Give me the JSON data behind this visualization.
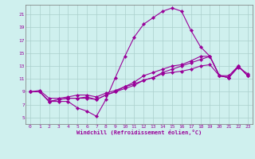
{
  "xlabel": "Windchill (Refroidissement éolien,°C)",
  "background_color": "#cff0ee",
  "plot_bg_color": "#cff0ee",
  "grid_color": "#aacfcc",
  "line_color": "#990099",
  "xlim": [
    -0.5,
    23.5
  ],
  "ylim": [
    4.0,
    22.5
  ],
  "yticks": [
    5,
    7,
    9,
    11,
    13,
    15,
    17,
    19,
    21
  ],
  "xticks": [
    0,
    1,
    2,
    3,
    4,
    5,
    6,
    7,
    8,
    9,
    10,
    11,
    12,
    13,
    14,
    15,
    16,
    17,
    18,
    19,
    20,
    21,
    22,
    23
  ],
  "series": [
    [
      9,
      9,
      7.5,
      7.5,
      7.5,
      6.5,
      6.0,
      5.2,
      7.8,
      11.2,
      14.5,
      17.5,
      19.5,
      20.5,
      21.5,
      22.0,
      21.5,
      18.5,
      16.0,
      14.5,
      11.5,
      11.5,
      13.0,
      11.5
    ],
    [
      9,
      9,
      7.5,
      7.8,
      8.0,
      8.0,
      8.0,
      7.8,
      8.5,
      9.0,
      9.8,
      10.5,
      11.5,
      12.0,
      12.5,
      13.0,
      13.2,
      13.8,
      14.5,
      14.5,
      11.5,
      11.2,
      13.0,
      11.5
    ],
    [
      9,
      9,
      7.5,
      7.8,
      8.0,
      8.0,
      8.2,
      7.8,
      8.5,
      9.0,
      9.5,
      10.0,
      10.8,
      11.2,
      12.0,
      12.5,
      13.0,
      13.5,
      14.0,
      14.5,
      11.5,
      11.2,
      13.0,
      11.5
    ],
    [
      9,
      9.2,
      8.0,
      8.0,
      8.2,
      8.5,
      8.5,
      8.2,
      8.8,
      9.2,
      9.8,
      10.2,
      10.8,
      11.2,
      11.8,
      12.0,
      12.2,
      12.5,
      13.0,
      13.2,
      11.5,
      11.2,
      12.8,
      11.8
    ]
  ],
  "tick_fontsize": 4.5,
  "xlabel_fontsize": 5.0,
  "linewidth": 0.8,
  "markersize": 2.2
}
